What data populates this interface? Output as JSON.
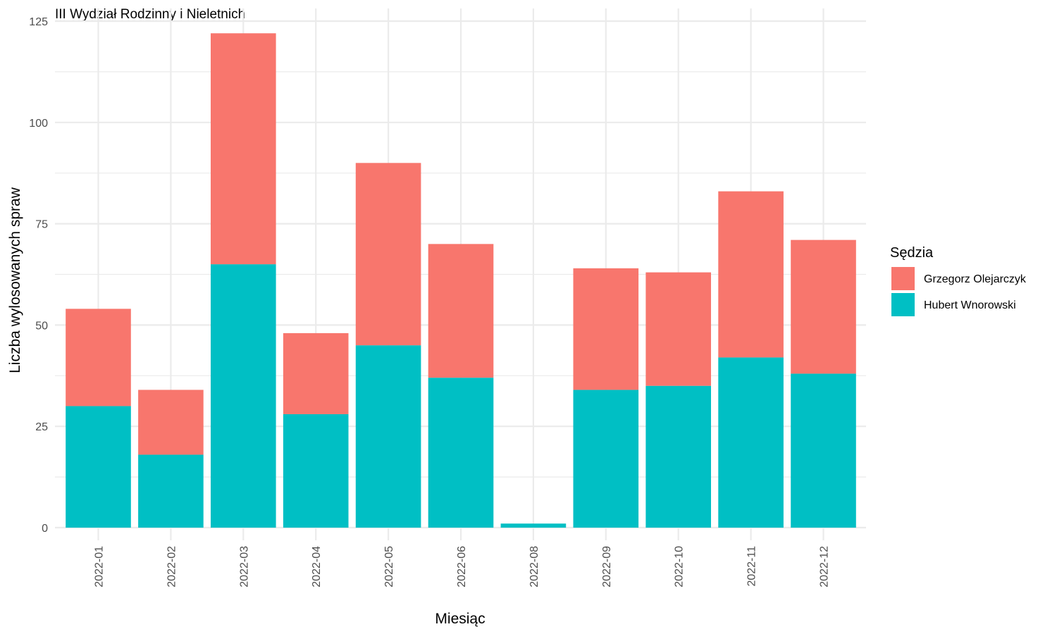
{
  "chart_data": {
    "type": "bar",
    "stacked": true,
    "title": "III Wydział Rodzinny i Nieletnich",
    "xlabel": "Miesiąc",
    "ylabel": "Liczba wylosowanych spraw",
    "ylim": [
      0,
      125
    ],
    "yticks": [
      "0",
      "25",
      "50",
      "75",
      "100",
      "125"
    ],
    "grid": true,
    "legend": {
      "title": "Sędzia",
      "position": "right"
    },
    "categories": [
      "2022-01",
      "2022-02",
      "2022-03",
      "2022-04",
      "2022-05",
      "2022-06",
      "2022-08",
      "2022-09",
      "2022-10",
      "2022-11",
      "2022-12"
    ],
    "series": [
      {
        "name": "Hubert Wnorowski",
        "color": "#00bfc4",
        "values": [
          30,
          18,
          65,
          28,
          45,
          37,
          1,
          34,
          35,
          42,
          38
        ]
      },
      {
        "name": "Grzegorz Olejarczyk",
        "color": "#f8766d",
        "values": [
          24,
          16,
          57,
          20,
          45,
          33,
          0,
          30,
          28,
          41,
          33
        ]
      }
    ],
    "legend_order": [
      "Grzegorz Olejarczyk",
      "Hubert Wnorowski"
    ]
  }
}
